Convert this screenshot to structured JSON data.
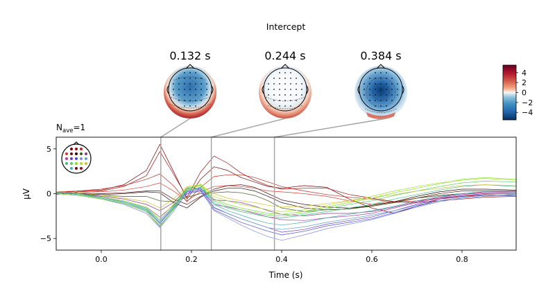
{
  "figure": {
    "suptitle": "Intercept"
  },
  "topomaps": [
    {
      "time_label": "0.132 s",
      "time": 0.132,
      "pattern": "frontal-negative-occipital-positive"
    },
    {
      "time_label": "0.244 s",
      "time": 0.244,
      "pattern": "weak-negative-occipital-positive"
    },
    {
      "time_label": "0.384 s",
      "time": 0.384,
      "pattern": "central-negative"
    }
  ],
  "colorbar": {
    "colormap": "RdBu_r",
    "vmin": -5.5,
    "vmax": 5.5,
    "ticks": [
      {
        "value": 4,
        "label": "4"
      },
      {
        "value": 2,
        "label": "2"
      },
      {
        "value": 0,
        "label": "0"
      },
      {
        "value": -2,
        "label": "−2"
      },
      {
        "value": -4,
        "label": "−4"
      }
    ]
  },
  "chart_data": {
    "type": "line",
    "nave_label": "N",
    "nave_subscript": "ave",
    "nave_value": "=1",
    "xlabel": "Time (s)",
    "ylabel": "µV",
    "xlim": [
      -0.1,
      0.92
    ],
    "ylim": [
      -6.3,
      6.3
    ],
    "xticks": [
      {
        "value": 0.0,
        "label": "0.0"
      },
      {
        "value": 0.2,
        "label": "0.2"
      },
      {
        "value": 0.4,
        "label": "0.4"
      },
      {
        "value": 0.6,
        "label": "0.6"
      },
      {
        "value": 0.8,
        "label": "0.8"
      }
    ],
    "yticks": [
      {
        "value": 5,
        "label": "5"
      },
      {
        "value": 0,
        "label": "0"
      },
      {
        "value": -5,
        "label": "−5"
      }
    ],
    "time_markers": [
      0.132,
      0.244,
      0.384
    ],
    "x": [
      -0.1,
      -0.05,
      0.0,
      0.05,
      0.1,
      0.13,
      0.16,
      0.19,
      0.22,
      0.25,
      0.28,
      0.31,
      0.34,
      0.37,
      0.4,
      0.45,
      0.5,
      0.55,
      0.6,
      0.65,
      0.7,
      0.75,
      0.8,
      0.85,
      0.92
    ],
    "series": [
      {
        "color": "#7f0000",
        "values": [
          0.1,
          0.3,
          0.4,
          1.0,
          2.6,
          5.5,
          2.5,
          -0.6,
          1.6,
          3.0,
          2.6,
          1.8,
          1.3,
          0.8,
          0.6,
          0.9,
          0.7,
          -0.6,
          -1.6,
          -2.2,
          -1.4,
          -0.6,
          -0.3,
          -0.1,
          -0.2
        ]
      },
      {
        "color": "#9e0b0b",
        "values": [
          -0.1,
          0.2,
          0.3,
          0.8,
          2.0,
          4.7,
          2.2,
          -0.4,
          2.4,
          4.2,
          3.4,
          2.3,
          1.5,
          0.9,
          0.5,
          0.6,
          0.6,
          -0.1,
          -0.5,
          -0.9,
          -1.0,
          -0.8,
          -0.6,
          -0.4,
          -0.3
        ]
      },
      {
        "color": "#c0281d",
        "values": [
          0.0,
          0.3,
          0.5,
          0.9,
          1.6,
          2.2,
          0.9,
          -0.9,
          0.7,
          1.9,
          2.1,
          2.1,
          1.8,
          1.3,
          0.8,
          0.3,
          -0.1,
          -0.4,
          -0.6,
          -1.0,
          -0.8,
          -0.5,
          -0.3,
          -0.2,
          -0.1
        ]
      },
      {
        "color": "#d83a2e",
        "values": [
          0.2,
          0.3,
          0.2,
          0.4,
          0.8,
          1.2,
          0.3,
          -0.8,
          0.2,
          0.8,
          0.9,
          0.8,
          0.6,
          0.3,
          0.2,
          0.0,
          -0.3,
          -0.8,
          -1.2,
          -0.9,
          -0.5,
          -0.2,
          0.0,
          0.1,
          0.1
        ]
      },
      {
        "color": "#5a1414",
        "values": [
          0.2,
          0.1,
          0.0,
          0.1,
          0.3,
          0.3,
          -0.6,
          -1.2,
          -0.3,
          0.5,
          0.9,
          1.0,
          0.7,
          0.0,
          -0.7,
          -1.2,
          -1.5,
          -1.6,
          -1.4,
          -1.0,
          -0.5,
          0.0,
          0.3,
          0.3,
          0.3
        ]
      },
      {
        "color": "#2c0505",
        "values": [
          0.1,
          0.0,
          -0.1,
          0.0,
          0.2,
          0.1,
          -1.0,
          -1.6,
          -0.4,
          0.3,
          0.6,
          0.6,
          0.3,
          -0.3,
          -1.0,
          -1.6,
          -1.8,
          -1.7,
          -1.3,
          -0.9,
          -0.3,
          0.2,
          0.5,
          0.5,
          0.4
        ]
      },
      {
        "color": "#3a5a1a",
        "values": [
          0.2,
          0.0,
          -0.2,
          -0.3,
          -0.3,
          -0.8,
          -0.9,
          -0.4,
          0.0,
          0.1,
          0.2,
          0.1,
          -0.2,
          -0.8,
          -1.6,
          -2.0,
          -1.8,
          -1.7,
          -1.4,
          -1.0,
          -0.5,
          -0.2,
          0.0,
          0.2,
          0.2
        ]
      },
      {
        "color": "#8a3a8a",
        "values": [
          0.1,
          0.0,
          -0.3,
          -0.6,
          -1.2,
          -1.9,
          -1.0,
          0.6,
          0.6,
          -0.7,
          -0.8,
          -1.0,
          -1.4,
          -1.9,
          -2.3,
          -2.5,
          -2.2,
          -2.2,
          -2.0,
          -1.5,
          -0.9,
          -0.4,
          0.0,
          0.2,
          0.2
        ]
      },
      {
        "color": "#b03bb0",
        "values": [
          0.2,
          0.0,
          -0.4,
          -0.8,
          -1.5,
          -2.6,
          -1.3,
          0.4,
          0.5,
          -1.2,
          -1.5,
          -1.8,
          -2.2,
          -2.6,
          -2.9,
          -3.0,
          -2.7,
          -2.5,
          -2.2,
          -1.6,
          -1.0,
          -0.5,
          -0.1,
          0.1,
          0.1
        ]
      },
      {
        "color": "#6a3ad0",
        "values": [
          0.1,
          -0.1,
          -0.5,
          -1.0,
          -1.8,
          -3.2,
          -1.6,
          0.2,
          0.4,
          -1.6,
          -2.2,
          -2.8,
          -3.3,
          -3.8,
          -4.3,
          -4.0,
          -3.4,
          -3.0,
          -2.6,
          -1.9,
          -1.2,
          -0.6,
          -0.2,
          0.0,
          0.0
        ]
      },
      {
        "color": "#4a4ae0",
        "values": [
          0.0,
          -0.2,
          -0.6,
          -1.1,
          -2.0,
          -3.6,
          -1.8,
          0.0,
          0.3,
          -1.8,
          -2.5,
          -3.2,
          -3.7,
          -4.2,
          -4.6,
          -4.2,
          -3.6,
          -3.2,
          -2.8,
          -2.1,
          -1.4,
          -0.8,
          -0.4,
          -0.2,
          -0.1
        ]
      },
      {
        "color": "#7d8cf0",
        "values": [
          0.0,
          -0.2,
          -0.6,
          -1.2,
          -2.2,
          -3.8,
          -2.0,
          0.1,
          0.4,
          -1.9,
          -2.7,
          -3.5,
          -4.2,
          -4.8,
          -5.2,
          -4.6,
          -3.9,
          -3.4,
          -2.9,
          -2.2,
          -1.5,
          -0.9,
          -0.5,
          -0.3,
          -0.2
        ]
      },
      {
        "color": "#5aa0d0",
        "values": [
          0.1,
          -0.1,
          -0.5,
          -1.0,
          -1.9,
          -3.3,
          -1.7,
          0.3,
          0.6,
          -1.5,
          -2.2,
          -2.8,
          -3.3,
          -3.8,
          -4.0,
          -3.7,
          -3.2,
          -2.8,
          -2.4,
          -1.9,
          -1.3,
          -0.8,
          -0.4,
          -0.2,
          -0.1
        ]
      },
      {
        "color": "#3cc07a",
        "values": [
          0.2,
          0.0,
          -0.4,
          -0.9,
          -1.6,
          -3.0,
          -1.4,
          0.6,
          0.9,
          -1.0,
          -1.6,
          -2.0,
          -2.3,
          -2.6,
          -2.7,
          -2.4,
          -2.0,
          -1.6,
          -1.2,
          -0.6,
          -0.1,
          0.4,
          0.8,
          1.0,
          0.8
        ]
      },
      {
        "color": "#5ed060",
        "values": [
          0.1,
          -0.1,
          -0.5,
          -1.0,
          -1.8,
          -3.4,
          -1.6,
          0.5,
          0.9,
          -0.8,
          -1.4,
          -1.8,
          -2.1,
          -2.4,
          -2.5,
          -2.2,
          -1.7,
          -1.2,
          -0.8,
          -0.2,
          0.3,
          0.8,
          1.2,
          1.4,
          1.3
        ]
      },
      {
        "color": "#80e020",
        "values": [
          0.0,
          -0.2,
          -0.6,
          -1.1,
          -2.0,
          -3.7,
          -1.8,
          0.4,
          1.0,
          -0.6,
          -1.2,
          -1.6,
          -1.9,
          -2.2,
          -2.3,
          -2.0,
          -1.5,
          -1.0,
          -0.5,
          0.1,
          0.6,
          1.1,
          1.6,
          1.8,
          1.6
        ]
      },
      {
        "color": "#a8e02a",
        "values": [
          0.1,
          -0.1,
          -0.4,
          -0.8,
          -1.5,
          -2.8,
          -1.2,
          0.7,
          1.1,
          -0.3,
          -0.8,
          -1.2,
          -1.5,
          -1.8,
          -2.0,
          -1.8,
          -1.3,
          -0.8,
          -0.3,
          0.3,
          0.8,
          1.2,
          1.5,
          1.7,
          1.5
        ]
      },
      {
        "color": "#d0c030",
        "values": [
          0.2,
          0.1,
          -0.2,
          -0.5,
          -0.9,
          -1.6,
          -0.6,
          0.8,
          0.9,
          0.0,
          -0.5,
          -0.8,
          -1.0,
          -1.3,
          -1.5,
          -1.4,
          -1.1,
          -0.8,
          -0.5,
          -0.1,
          0.3,
          0.6,
          0.9,
          1.0,
          0.9
        ]
      },
      {
        "color": "#40b0b0",
        "values": [
          0.1,
          -0.1,
          -0.4,
          -0.9,
          -1.7,
          -3.0,
          -1.5,
          0.3,
          0.7,
          -1.2,
          -1.9,
          -2.4,
          -2.9,
          -3.3,
          -3.5,
          -3.2,
          -2.7,
          -2.3,
          -1.9,
          -1.4,
          -0.8,
          -0.3,
          0.0,
          0.2,
          0.1
        ]
      }
    ]
  }
}
